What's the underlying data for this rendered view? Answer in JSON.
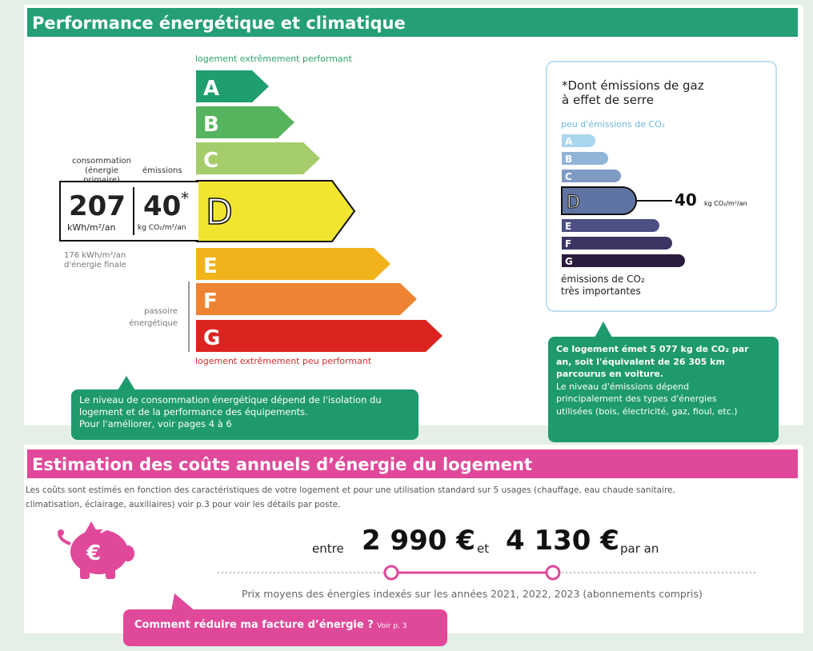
{
  "section1": {
    "title": "Performance énergétique et climatique",
    "top_label": "logement extrêmement performant",
    "bottom_label": "logement extrêmement peu performant",
    "classes": [
      "A",
      "B",
      "C",
      "D",
      "E",
      "F",
      "G"
    ],
    "class_colors": [
      "#1f9e6e",
      "#57b45e",
      "#a4cc6b",
      "#f2e52f",
      "#f1b31c",
      "#ee8433",
      "#db2320"
    ],
    "current_class": "D",
    "consumption_header": "consommation\n(énergie primaire)",
    "emissions_header": "émissions",
    "consumption_value": "207",
    "consumption_unit": "kWh/m²/an",
    "emissions_value": "40",
    "emissions_star": "*",
    "emissions_unit": "kg CO₂/m²/an",
    "final_energy_line1": "176 kWh/m²/an",
    "final_energy_line2": "d'énergie finale",
    "passoire_line1": "passoire",
    "passoire_line2": "énergétique",
    "info_text_1": "Le niveau de consommation énergétique dépend de l'isolation du",
    "info_text_2": "logement et de la performance des équipements.",
    "info_text_3": "Pour l'améliorer, voir pages 4 à 6"
  },
  "co2": {
    "heading_line1": "*Dont émissions de gaz",
    "heading_line2": "à effet de serre",
    "top_label": "peu d'émissions de CO₂",
    "classes": [
      "A",
      "B",
      "C",
      "D",
      "E",
      "F",
      "G"
    ],
    "class_colors": [
      "#a9d6ef",
      "#8fb5d8",
      "#7f9bc4",
      "#5f74a3",
      "#4b4f82",
      "#3c3563",
      "#2b1b3d"
    ],
    "current_class": "D",
    "value": "40",
    "unit": "kg CO₂/m²/an",
    "bottom_line1": "émissions de CO₂",
    "bottom_line2": "très importantes",
    "info_bold_1": "Ce logement émet 5 077 kg de CO₂ par",
    "info_bold_2": "an, soit l'équivalent de 26 305 km",
    "info_bold_3": "parcourus en voiture.",
    "info_1": "Le niveau d'émissions dépend",
    "info_2": "principalement des types d'énergies",
    "info_3": "utilisées (bois, électricité, gaz, fioul, etc.)"
  },
  "section2": {
    "title": "Estimation des coûts annuels d’énergie du logement",
    "desc_1": "Les coûts sont estimés en fonction des caractéristiques de votre logement et pour une utilisation standard sur 5 usages (chauffage, eau chaude sanitaire,",
    "desc_2": "climatisation, éclairage, auxiliaires) voir p.3 pour voir les détails par poste.",
    "between": "entre",
    "low": "2 990 €",
    "and": "et",
    "high": "4 130 €",
    "per_year": "par an",
    "prices_note": "Prix moyens des énergies indexés sur les années 2021, 2022, 2023 (abonnements compris)",
    "reduce_link": "Comment réduire ma facture d’énergie ?",
    "reduce_ref": "Voir p. 3",
    "piggy_symbol": "€",
    "accent_color": "#e0489a"
  }
}
